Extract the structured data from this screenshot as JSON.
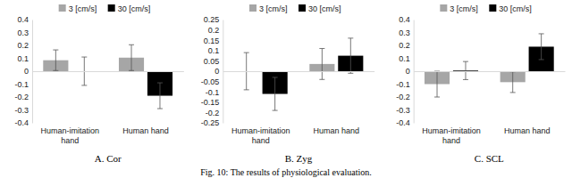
{
  "chart_data": [
    {
      "type": "bar",
      "title": "A. Cor",
      "categories": [
        "Human-imitation hand",
        "Human hand"
      ],
      "series": [
        {
          "name": "3 [cm/s]",
          "color": "#a6a6a6",
          "values": [
            0.085,
            0.105
          ],
          "errors": [
            0.08,
            0.1
          ]
        },
        {
          "name": "30 [cm/s]",
          "color": "#000000",
          "values": [
            0.0,
            -0.19
          ],
          "errors": [
            0.11,
            0.1
          ]
        }
      ],
      "ylim": [
        -0.4,
        0.4
      ],
      "yticks": [
        -0.4,
        -0.3,
        -0.2,
        -0.1,
        0,
        0.1,
        0.2,
        0.3,
        0.4
      ],
      "legend": "top"
    },
    {
      "type": "bar",
      "title": "B. Zyg",
      "categories": [
        "Human-imitation hand",
        "Human hand"
      ],
      "series": [
        {
          "name": "3 [cm/s]",
          "color": "#a6a6a6",
          "values": [
            0.0,
            0.035
          ],
          "errors": [
            0.09,
            0.075
          ]
        },
        {
          "name": "30 [cm/s]",
          "color": "#000000",
          "values": [
            -0.11,
            0.075
          ],
          "errors": [
            0.08,
            0.085
          ]
        }
      ],
      "ylim": [
        -0.25,
        0.25
      ],
      "yticks": [
        -0.25,
        -0.2,
        -0.15,
        -0.1,
        -0.05,
        0,
        0.05,
        0.1,
        0.15,
        0.2,
        0.25
      ],
      "legend": "top"
    },
    {
      "type": "bar",
      "title": "C. SCL",
      "categories": [
        "Human-imitation hand",
        "Human hand"
      ],
      "series": [
        {
          "name": "3 [cm/s]",
          "color": "#a6a6a6",
          "values": [
            -0.1,
            -0.085
          ],
          "errors": [
            0.1,
            0.08
          ]
        },
        {
          "name": "30 [cm/s]",
          "color": "#000000",
          "values": [
            0.005,
            0.19
          ],
          "errors": [
            0.07,
            0.1
          ]
        }
      ],
      "ylim": [
        -0.4,
        0.4
      ],
      "yticks": [
        -0.4,
        -0.3,
        -0.2,
        -0.1,
        0,
        0.1,
        0.2,
        0.3,
        0.4
      ],
      "legend": "top"
    }
  ],
  "caption": "Fig. 10: The results of physiological evaluation."
}
